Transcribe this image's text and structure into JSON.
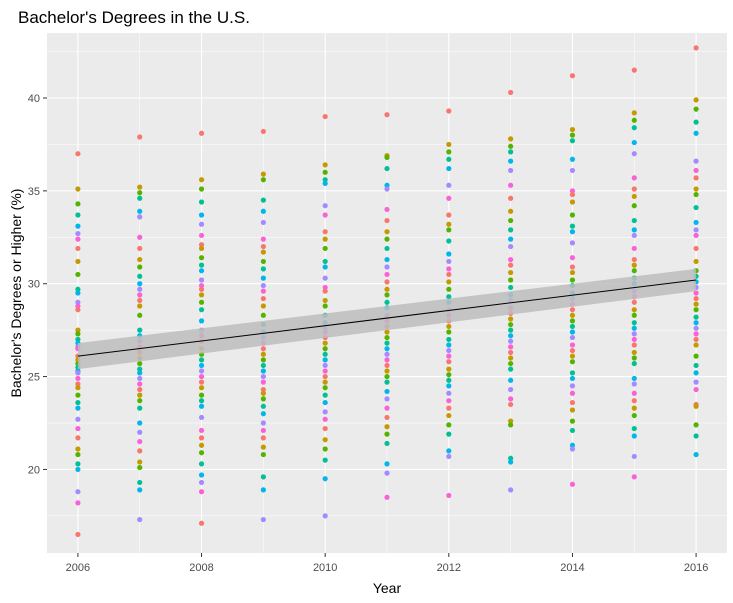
{
  "chart_data": {
    "type": "scatter",
    "title": "Bachelor's Degrees in the U.S.",
    "xlabel": "Year",
    "ylabel": "Bachelor's Degrees or Higher (%)",
    "xlim": [
      2005.5,
      2016.5
    ],
    "ylim": [
      15.5,
      43.5
    ],
    "x_ticks": [
      2006,
      2008,
      2010,
      2012,
      2014,
      2016
    ],
    "y_ticks": [
      20,
      25,
      30,
      35,
      40
    ],
    "grid": true,
    "legend": "none",
    "colors": {
      "panel": "#EBEBEB",
      "grid": "#FFFFFF",
      "ribbon": "#BDBDBD",
      "trend": "#000000",
      "palette": [
        "#F8766D",
        "#C49A00",
        "#53B400",
        "#00C094",
        "#00B6EB",
        "#A58AFF",
        "#FB61D7"
      ]
    },
    "trend": {
      "x": [
        2006,
        2016
      ],
      "y": [
        26.1,
        30.2
      ],
      "ci_low": [
        25.4,
        29.6
      ],
      "ci_high": [
        26.8,
        30.8
      ]
    },
    "series": [
      {
        "x": 2006,
        "values": [
          37.0,
          35.1,
          34.3,
          33.7,
          33.1,
          32.7,
          32.4,
          31.9,
          31.2,
          30.5,
          29.7,
          29.5,
          29.0,
          28.8,
          28.6,
          27.5,
          27.3,
          27.0,
          26.8,
          26.6,
          26.5,
          26.1,
          25.9,
          25.7,
          25.5,
          25.3,
          25.2,
          24.9,
          24.6,
          24.4,
          24.0,
          23.6,
          23.3,
          22.7,
          22.2,
          21.7,
          21.1,
          20.8,
          20.3,
          20.0,
          18.8,
          18.2,
          16.5
        ]
      },
      {
        "x": 2007,
        "values": [
          37.9,
          35.2,
          34.9,
          34.6,
          33.9,
          33.6,
          32.5,
          31.9,
          31.3,
          30.9,
          30.4,
          30.0,
          29.7,
          29.4,
          29.1,
          28.8,
          28.3,
          27.5,
          27.2,
          26.9,
          26.6,
          26.3,
          26.0,
          25.7,
          25.4,
          25.2,
          24.9,
          24.6,
          24.3,
          24.0,
          23.7,
          23.3,
          22.5,
          22.0,
          21.5,
          21.0,
          20.4,
          20.1,
          19.3,
          18.9,
          17.3
        ]
      },
      {
        "x": 2008,
        "values": [
          38.1,
          35.6,
          35.1,
          34.4,
          33.7,
          33.2,
          32.6,
          32.1,
          31.9,
          31.4,
          31.0,
          30.7,
          30.2,
          29.9,
          29.7,
          29.4,
          29.0,
          28.6,
          28.0,
          27.5,
          27.2,
          26.9,
          26.5,
          26.2,
          25.9,
          25.6,
          25.3,
          25.0,
          24.7,
          24.4,
          24.0,
          23.7,
          23.4,
          22.8,
          22.1,
          21.7,
          21.3,
          20.9,
          20.3,
          19.7,
          19.3,
          18.8,
          17.1
        ]
      },
      {
        "x": 2009,
        "values": [
          38.2,
          35.9,
          35.6,
          34.5,
          33.9,
          33.3,
          32.4,
          32.0,
          31.7,
          31.2,
          30.8,
          30.3,
          29.9,
          29.6,
          29.2,
          28.8,
          28.3,
          27.8,
          27.4,
          27.1,
          26.8,
          26.5,
          26.2,
          25.9,
          25.6,
          25.3,
          25.0,
          24.7,
          24.3,
          24.1,
          23.8,
          23.4,
          23.0,
          22.5,
          22.1,
          21.7,
          21.2,
          20.8,
          19.6,
          18.9,
          17.3
        ]
      },
      {
        "x": 2010,
        "values": [
          39.0,
          36.4,
          36.0,
          35.6,
          35.4,
          34.2,
          33.7,
          32.8,
          32.4,
          31.9,
          31.2,
          30.9,
          30.3,
          29.8,
          29.6,
          29.1,
          28.8,
          28.3,
          27.9,
          27.6,
          27.4,
          27.1,
          26.8,
          26.5,
          26.2,
          25.9,
          25.6,
          25.3,
          25.0,
          24.7,
          24.4,
          24.0,
          23.6,
          23.1,
          22.7,
          22.2,
          21.6,
          21.1,
          20.5,
          19.5,
          17.5
        ]
      },
      {
        "x": 2011,
        "values": [
          39.1,
          36.9,
          36.8,
          36.2,
          35.3,
          35.1,
          34.0,
          33.4,
          32.8,
          32.4,
          31.9,
          31.3,
          30.9,
          30.5,
          30.1,
          29.7,
          29.4,
          29.0,
          28.7,
          28.3,
          28.0,
          27.7,
          27.4,
          27.1,
          26.8,
          26.5,
          26.2,
          25.9,
          25.6,
          25.3,
          25.0,
          24.7,
          24.2,
          23.8,
          23.3,
          22.8,
          22.3,
          21.9,
          21.4,
          20.3,
          19.8,
          18.5
        ]
      },
      {
        "x": 2012,
        "values": [
          39.3,
          37.5,
          37.1,
          36.7,
          36.2,
          35.3,
          34.6,
          33.7,
          33.2,
          32.9,
          32.3,
          31.6,
          31.2,
          30.8,
          30.5,
          30.1,
          29.7,
          29.3,
          29.0,
          28.6,
          28.3,
          28.0,
          27.7,
          27.4,
          27.0,
          26.7,
          26.4,
          26.1,
          25.8,
          25.4,
          25.1,
          24.8,
          24.5,
          24.1,
          23.7,
          23.3,
          22.9,
          22.4,
          21.9,
          21.0,
          20.7,
          18.6
        ]
      },
      {
        "x": 2013,
        "values": [
          40.3,
          37.8,
          37.4,
          37.1,
          36.6,
          36.1,
          35.3,
          34.6,
          33.9,
          33.4,
          32.9,
          32.4,
          32.0,
          31.3,
          31.0,
          30.6,
          30.2,
          29.8,
          29.4,
          29.1,
          28.7,
          28.4,
          28.1,
          27.8,
          27.5,
          27.2,
          26.9,
          26.6,
          26.3,
          26.0,
          25.7,
          25.4,
          24.8,
          24.3,
          23.8,
          23.5,
          22.6,
          22.4,
          20.6,
          20.4,
          18.9
        ]
      },
      {
        "x": 2014,
        "values": [
          41.2,
          38.3,
          38.0,
          37.7,
          36.7,
          36.1,
          35.0,
          34.8,
          34.4,
          33.7,
          33.1,
          32.8,
          32.2,
          31.4,
          30.9,
          30.6,
          30.2,
          29.9,
          29.5,
          29.2,
          28.9,
          28.6,
          28.3,
          28.0,
          27.7,
          27.4,
          27.1,
          26.7,
          26.4,
          26.1,
          25.8,
          25.2,
          24.9,
          24.5,
          24.1,
          23.6,
          23.2,
          22.6,
          22.1,
          21.3,
          21.1,
          19.2
        ]
      },
      {
        "x": 2015,
        "values": [
          41.5,
          39.2,
          38.8,
          38.4,
          37.6,
          37.0,
          35.7,
          35.1,
          34.7,
          34.2,
          33.4,
          32.9,
          32.6,
          31.9,
          31.3,
          31.0,
          30.7,
          30.3,
          30.0,
          29.6,
          29.3,
          29.0,
          28.6,
          28.3,
          27.9,
          27.6,
          27.3,
          27.0,
          26.7,
          26.3,
          26.0,
          25.7,
          24.9,
          24.6,
          24.1,
          23.7,
          23.3,
          22.9,
          22.2,
          21.8,
          20.7,
          19.6
        ]
      },
      {
        "x": 2016,
        "values": [
          42.7,
          39.9,
          39.4,
          38.7,
          38.1,
          36.6,
          36.1,
          35.7,
          35.1,
          34.8,
          34.1,
          33.3,
          32.9,
          32.6,
          31.9,
          31.2,
          30.7,
          30.4,
          30.1,
          29.8,
          29.5,
          29.2,
          28.9,
          28.6,
          28.2,
          27.9,
          27.6,
          27.3,
          27.0,
          26.7,
          26.1,
          25.6,
          25.2,
          24.7,
          24.3,
          23.5,
          23.4,
          22.4,
          21.8,
          20.8
        ]
      }
    ]
  }
}
